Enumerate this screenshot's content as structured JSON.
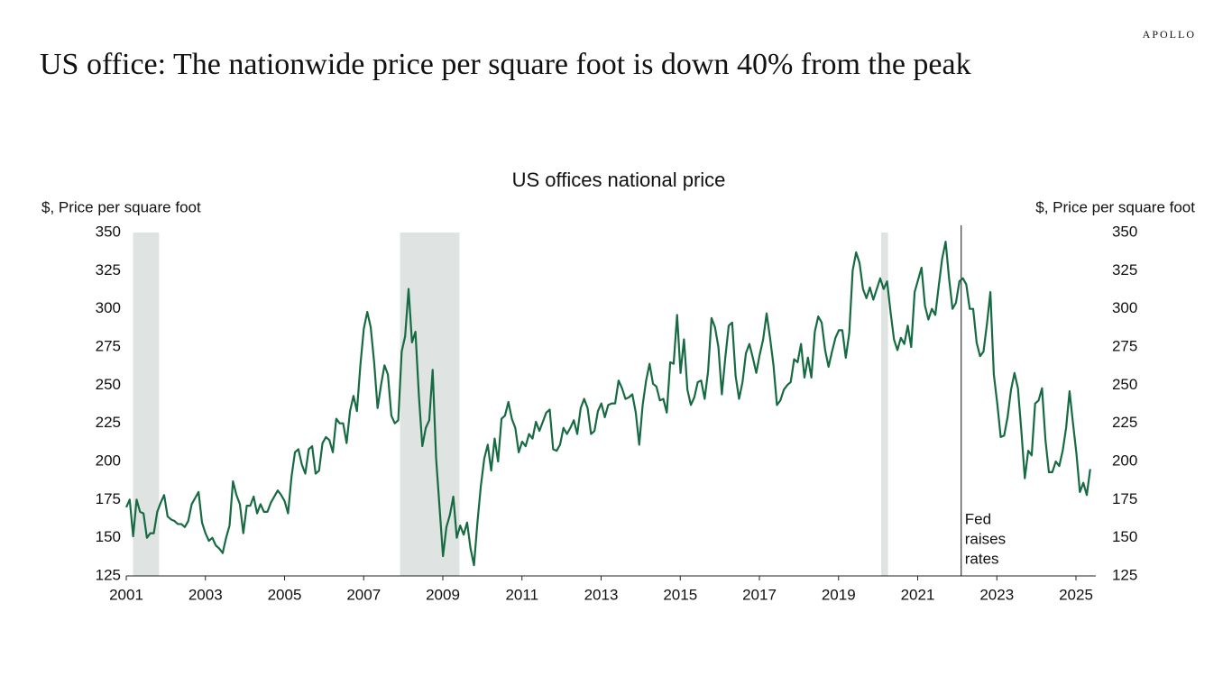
{
  "brand": "APOLLO",
  "headline": "US office: The nationwide price per square foot is down 40% from the peak",
  "chart_data": {
    "type": "line",
    "title": "US offices national price",
    "ylabel": "$, Price per square foot",
    "y2label": "$, Price per square foot",
    "xlim": [
      2001,
      2025.5
    ],
    "xticks": [
      2001,
      2003,
      2005,
      2007,
      2009,
      2011,
      2013,
      2015,
      2017,
      2019,
      2021,
      2023,
      2025
    ],
    "ylim": [
      125,
      350
    ],
    "yticks": [
      125,
      150,
      175,
      200,
      225,
      250,
      275,
      300,
      325,
      350
    ],
    "y2lim": [
      125,
      350
    ],
    "y2ticks": [
      125,
      150,
      175,
      200,
      225,
      250,
      275,
      300,
      325,
      350
    ],
    "recessions": [
      [
        2001.17,
        2001.83
      ],
      [
        2007.92,
        2009.42
      ],
      [
        2020.08,
        2020.25
      ]
    ],
    "recession_color": "#dfe3e2",
    "annotation": {
      "x": 2022.1,
      "lines": [
        "Fed",
        "raises",
        "rates"
      ]
    },
    "x": [
      2001.0,
      2001.087,
      2001.174,
      2001.261,
      2001.348,
      2001.435,
      2001.522,
      2001.609,
      2001.696,
      2001.783,
      2001.87,
      2001.957,
      2002.044,
      2002.131,
      2002.218,
      2002.305,
      2002.392,
      2002.479,
      2002.566,
      2002.653,
      2002.74,
      2002.827,
      2002.914,
      2003.001,
      2003.088,
      2003.175,
      2003.262,
      2003.349,
      2003.436,
      2003.523,
      2003.61,
      2003.697,
      2003.784,
      2003.871,
      2003.958,
      2004.045,
      2004.132,
      2004.219,
      2004.306,
      2004.393,
      2004.48,
      2004.567,
      2004.654,
      2004.741,
      2004.828,
      2004.915,
      2005.002,
      2005.089,
      2005.176,
      2005.263,
      2005.35,
      2005.437,
      2005.524,
      2005.611,
      2005.698,
      2005.785,
      2005.872,
      2005.959,
      2006.046,
      2006.133,
      2006.22,
      2006.307,
      2006.394,
      2006.481,
      2006.568,
      2006.655,
      2006.742,
      2006.829,
      2006.916,
      2007.003,
      2007.09,
      2007.177,
      2007.264,
      2007.351,
      2007.438,
      2007.525,
      2007.612,
      2007.699,
      2007.786,
      2007.873,
      2007.96,
      2008.047,
      2008.134,
      2008.221,
      2008.308,
      2008.395,
      2008.482,
      2008.569,
      2008.656,
      2008.743,
      2008.83,
      2008.917,
      2009.004,
      2009.091,
      2009.178,
      2009.265,
      2009.352,
      2009.439,
      2009.526,
      2009.613,
      2009.7,
      2009.787,
      2009.874,
      2009.961,
      2010.048,
      2010.135,
      2010.222,
      2010.309,
      2010.396,
      2010.483,
      2010.57,
      2010.657,
      2010.744,
      2010.831,
      2010.918,
      2011.005,
      2011.092,
      2011.179,
      2011.266,
      2011.353,
      2011.44,
      2011.527,
      2011.614,
      2011.701,
      2011.788,
      2011.875,
      2011.962,
      2012.049,
      2012.136,
      2012.223,
      2012.31,
      2012.397,
      2012.484,
      2012.571,
      2012.658,
      2012.745,
      2012.832,
      2012.919,
      2013.006,
      2013.093,
      2013.18,
      2013.267,
      2013.354,
      2013.441,
      2013.528,
      2013.615,
      2013.702,
      2013.789,
      2013.876,
      2013.963,
      2014.05,
      2014.137,
      2014.224,
      2014.311,
      2014.398,
      2014.485,
      2014.572,
      2014.659,
      2014.746,
      2014.833,
      2014.92,
      2015.007,
      2015.094,
      2015.181,
      2015.268,
      2015.355,
      2015.442,
      2015.529,
      2015.616,
      2015.703,
      2015.79,
      2015.877,
      2015.964,
      2016.051,
      2016.138,
      2016.225,
      2016.312,
      2016.399,
      2016.486,
      2016.573,
      2016.66,
      2016.747,
      2016.834,
      2016.921,
      2017.008,
      2017.095,
      2017.182,
      2017.269,
      2017.356,
      2017.443,
      2017.53,
      2017.617,
      2017.704,
      2017.791,
      2017.878,
      2017.965,
      2018.052,
      2018.139,
      2018.226,
      2018.313,
      2018.4,
      2018.487,
      2018.574,
      2018.661,
      2018.748,
      2018.835,
      2018.922,
      2019.009,
      2019.096,
      2019.183,
      2019.27,
      2019.357,
      2019.444,
      2019.531,
      2019.618,
      2019.705,
      2019.792,
      2019.879,
      2019.966,
      2020.053,
      2020.14,
      2020.227,
      2020.314,
      2020.401,
      2020.488,
      2020.575,
      2020.662,
      2020.749,
      2020.836,
      2020.923,
      2021.01,
      2021.097,
      2021.184,
      2021.271,
      2021.358,
      2021.445,
      2021.532,
      2021.619,
      2021.706,
      2021.793,
      2021.88,
      2021.967,
      2022.054,
      2022.141,
      2022.228,
      2022.315,
      2022.402,
      2022.489,
      2022.576,
      2022.663,
      2022.75,
      2022.837,
      2022.924,
      2023.011,
      2023.098,
      2023.185,
      2023.272,
      2023.359,
      2023.446,
      2023.533,
      2023.62,
      2023.707,
      2023.794,
      2023.881,
      2023.968,
      2024.055,
      2024.142,
      2024.229,
      2024.316,
      2024.403,
      2024.49,
      2024.577,
      2024.664,
      2024.751,
      2024.838,
      2024.925,
      2025.012,
      2025.099,
      2025.186,
      2025.273,
      2025.36
    ],
    "series": [
      {
        "color": "#176b43",
        "values": [
          170,
          175,
          151,
          175,
          167,
          166,
          150,
          153,
          153,
          167,
          173,
          178,
          164,
          162,
          161,
          159,
          159,
          157,
          161,
          172,
          176,
          180,
          160,
          153,
          148,
          150,
          145,
          143,
          140,
          150,
          158,
          187,
          178,
          172,
          153,
          171,
          171,
          177,
          166,
          172,
          167,
          167,
          173,
          177,
          181,
          178,
          174,
          166,
          190,
          206,
          208,
          198,
          192,
          208,
          210,
          192,
          194,
          212,
          216,
          214,
          206,
          228,
          225,
          225,
          212,
          233,
          243,
          233,
          263,
          287,
          298,
          288,
          265,
          235,
          250,
          263,
          257,
          230,
          225,
          227,
          272,
          282,
          313,
          278,
          285,
          243,
          210,
          222,
          227,
          260,
          202,
          170,
          138,
          157,
          165,
          177,
          150,
          158,
          152,
          160,
          143,
          132,
          160,
          184,
          202,
          211,
          194,
          215,
          200,
          228,
          230,
          239,
          228,
          222,
          206,
          213,
          210,
          218,
          215,
          226,
          220,
          226,
          232,
          234,
          208,
          207,
          211,
          222,
          218,
          222,
          227,
          218,
          235,
          241,
          235,
          218,
          220,
          233,
          238,
          229,
          237,
          238,
          238,
          253,
          248,
          241,
          242,
          244,
          232,
          211,
          237,
          253,
          264,
          251,
          249,
          240,
          241,
          232,
          265,
          264,
          296,
          258,
          280,
          247,
          237,
          242,
          252,
          253,
          241,
          259,
          294,
          288,
          275,
          244,
          268,
          289,
          291,
          256,
          241,
          252,
          271,
          277,
          268,
          258,
          270,
          280,
          297,
          281,
          263,
          237,
          240,
          247,
          250,
          252,
          267,
          265,
          277,
          255,
          268,
          255,
          285,
          295,
          291,
          273,
          262,
          272,
          281,
          286,
          286,
          268,
          284,
          325,
          337,
          330,
          313,
          307,
          314,
          306,
          313,
          320,
          313,
          318,
          298,
          280,
          273,
          281,
          277,
          289,
          275,
          311,
          319,
          327,
          302,
          293,
          300,
          296,
          315,
          333,
          344,
          320,
          300,
          304,
          318,
          320,
          316,
          300,
          300,
          278,
          269,
          272,
          290,
          311,
          257,
          238,
          216,
          217,
          229,
          247,
          258,
          248,
          220,
          189,
          207,
          204,
          238,
          240,
          248,
          214,
          193,
          193,
          200,
          197,
          207,
          222,
          246,
          225,
          205,
          180,
          186,
          178,
          195
        ]
      }
    ]
  }
}
